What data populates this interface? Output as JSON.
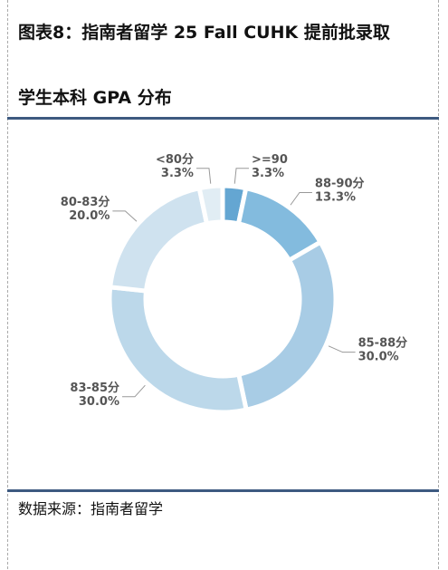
{
  "chart_data": {
    "type": "donut",
    "title": "图表8：指南者留学 25 Fall CUHK 提前批录取\n学生本科 GPA 分布",
    "categories": [
      ">=90",
      "88-90分",
      "85-88分",
      "83-85分",
      "80-83分",
      "<80分"
    ],
    "values": [
      3.3,
      13.3,
      30.0,
      30.0,
      20.0,
      3.3
    ],
    "value_labels": [
      "3.3%",
      "13.3%",
      "30.0%",
      "30.0%",
      "20.0%",
      "3.3%"
    ],
    "colors": [
      "#64a6d2",
      "#83bbde",
      "#a8cce5",
      "#bcd8ea",
      "#cfe2ef",
      "#e1edf4"
    ],
    "source": "数据来源：指南者留学"
  }
}
